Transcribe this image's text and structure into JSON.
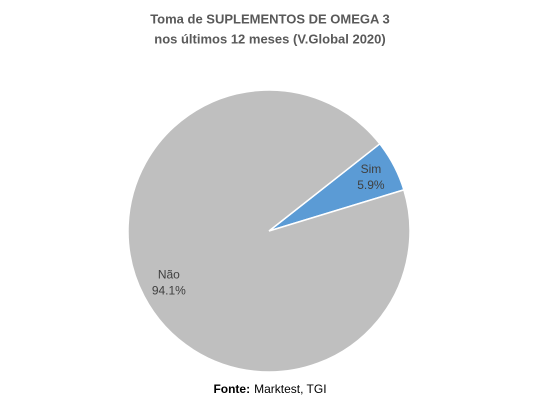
{
  "chart_data": {
    "type": "pie",
    "title": [
      "Toma de SUPLEMENTOS DE OMEGA 3",
      "nos últimos 12 meses (V.Global 2020)"
    ],
    "categories": [
      "Sim",
      "Não"
    ],
    "values": [
      5.9,
      94.1
    ],
    "value_labels": [
      "5.9%",
      "94.1%"
    ],
    "colors": [
      "#5b9bd5",
      "#bfbfbf"
    ],
    "source": {
      "label": "Fonte:",
      "text": "Marktest, TGI"
    }
  }
}
